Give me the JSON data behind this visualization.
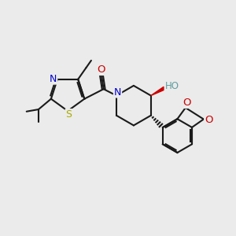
{
  "background_color": "#ebebeb",
  "bond_color": "#1a1a1a",
  "atom_colors": {
    "N": "#0000cc",
    "O": "#cc0000",
    "S": "#aaaa00",
    "OH_color": "#5f9ea0",
    "C": "#1a1a1a"
  },
  "font_size": 8.5,
  "lw": 1.5
}
